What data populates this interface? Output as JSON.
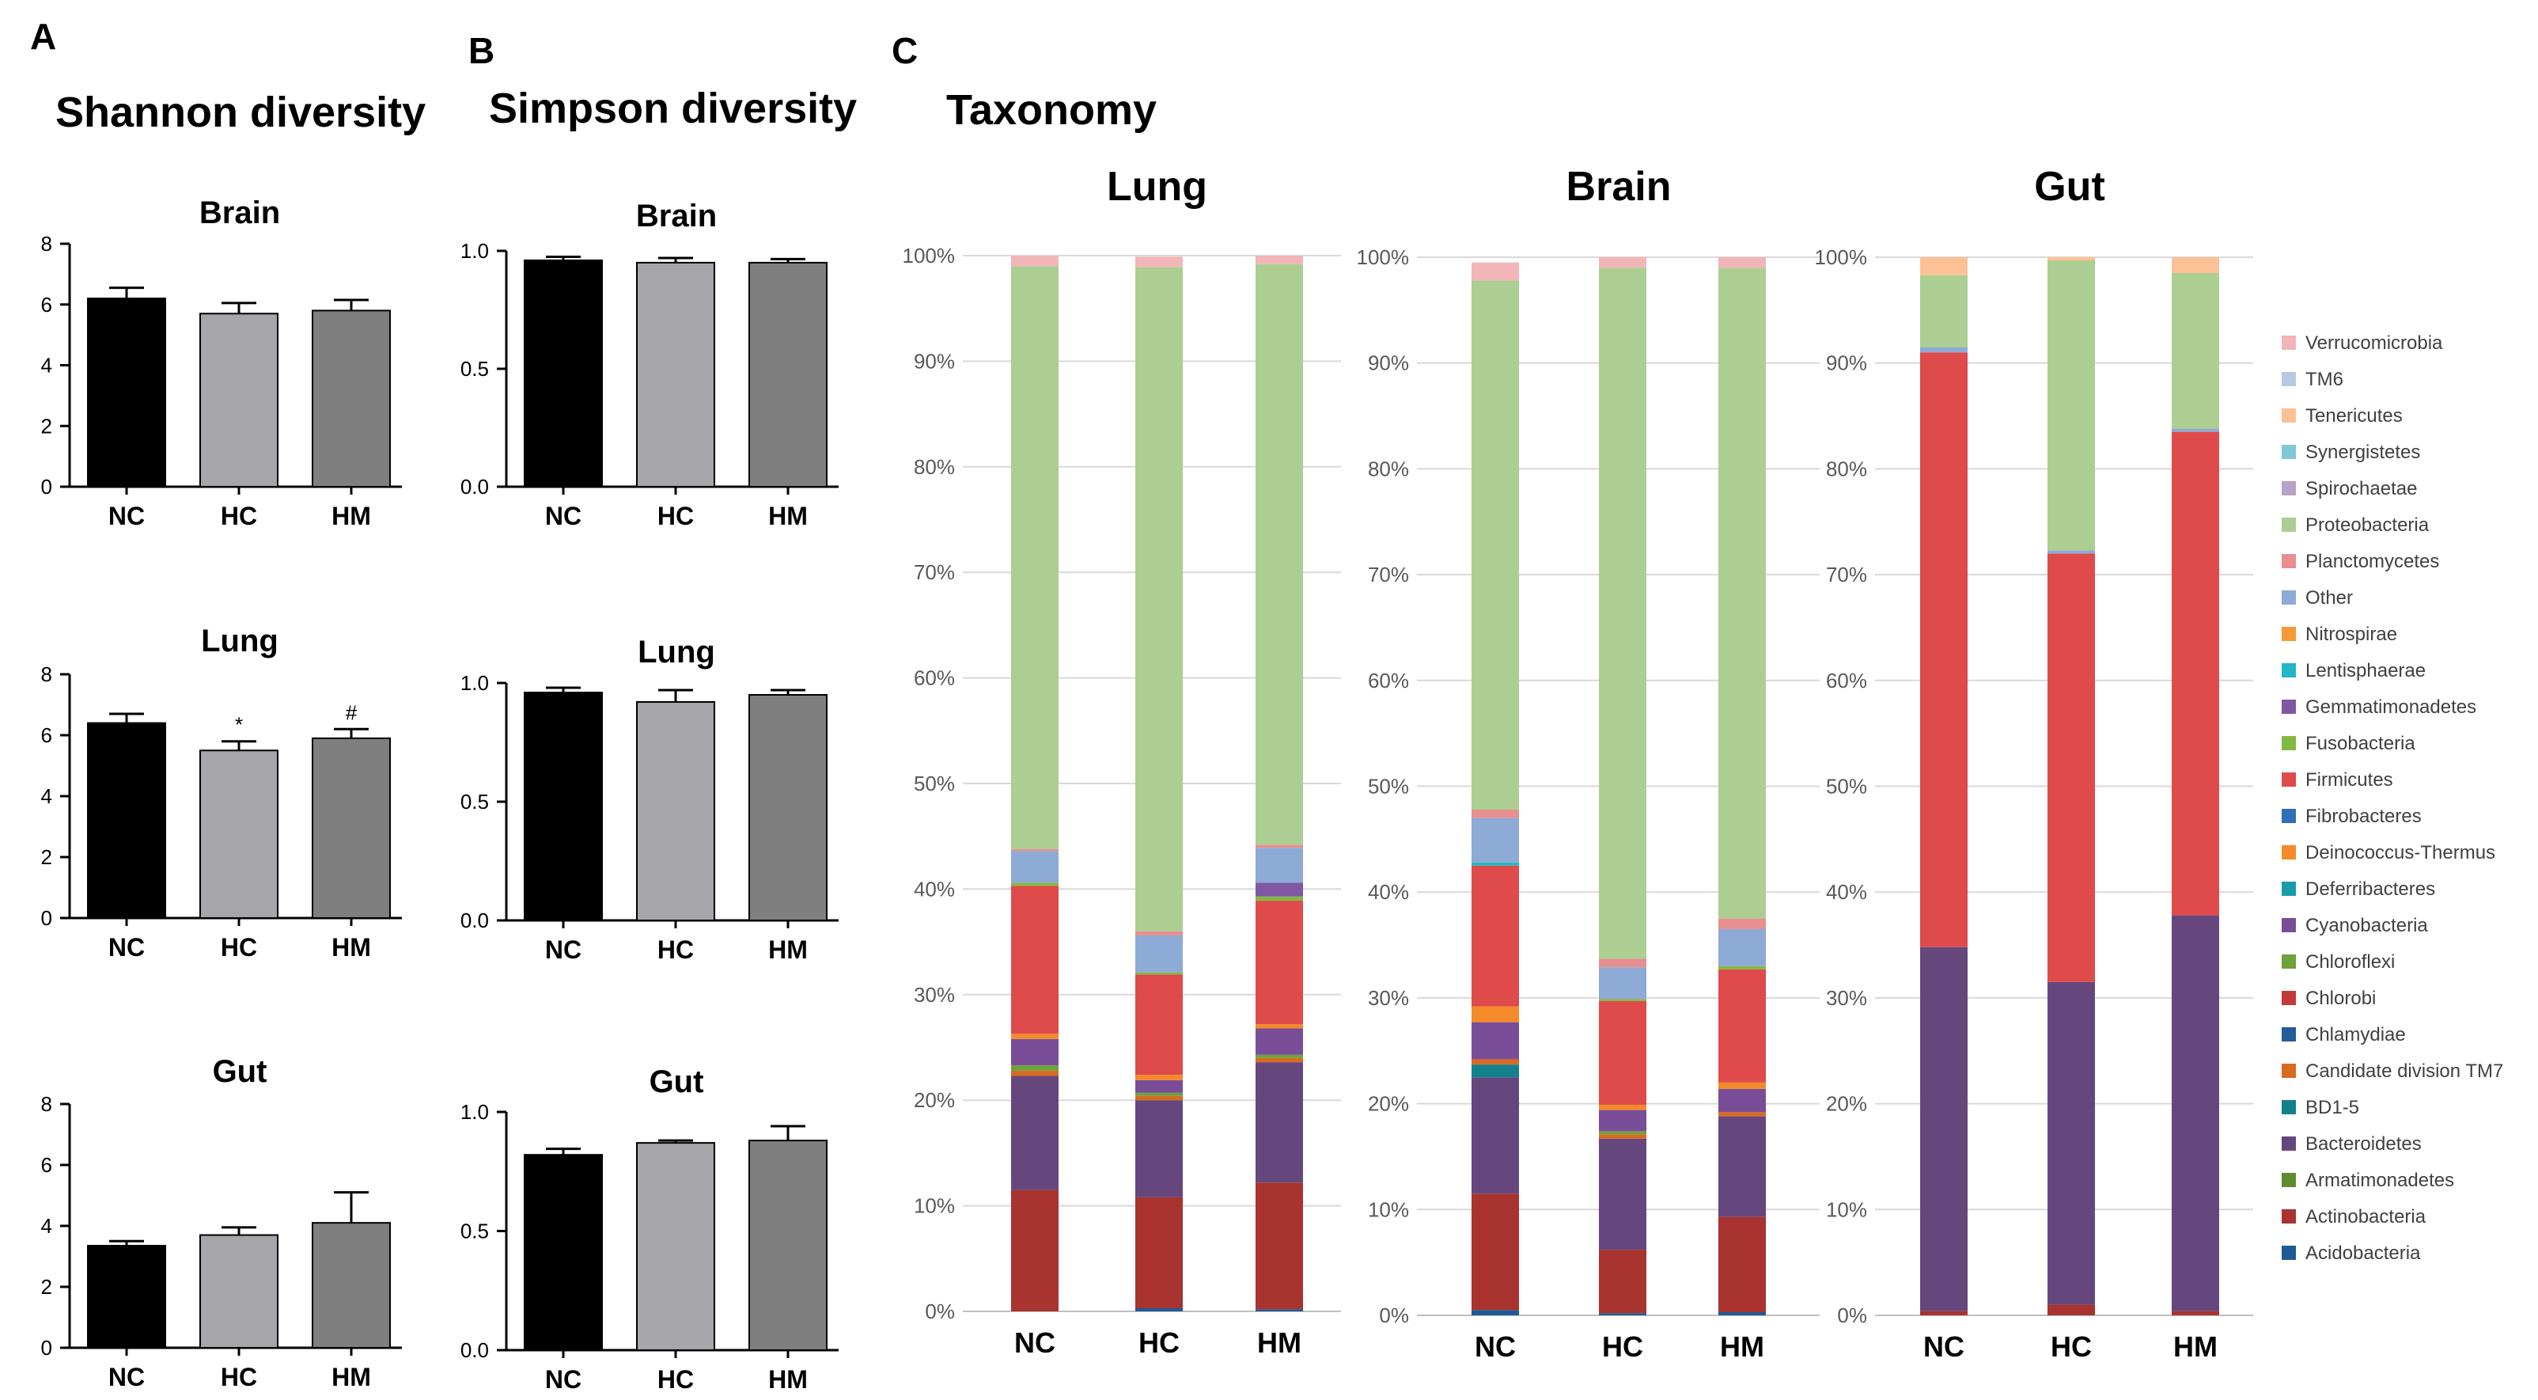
{
  "panels": {
    "a": {
      "letter": "A",
      "title": "Shannon diversity"
    },
    "b": {
      "letter": "B",
      "title": "Simpson diversity"
    },
    "c": {
      "letter": "C",
      "title": "Taxonomy"
    }
  },
  "colors": {
    "NC": "#000000",
    "HC": "#a5a5aa",
    "HM": "#7f7f7f"
  },
  "chart_data": [
    {
      "type": "bar",
      "id": "shannon-brain",
      "title": "Brain",
      "categories": [
        "NC",
        "HC",
        "HM"
      ],
      "values": [
        6.2,
        5.7,
        5.8
      ],
      "errors": [
        0.35,
        0.35,
        0.35
      ],
      "annotations": [
        "",
        "",
        ""
      ],
      "ylim": [
        0,
        8
      ],
      "yticks": [
        "0",
        "2",
        "4",
        "6",
        "8"
      ]
    },
    {
      "type": "bar",
      "id": "shannon-lung",
      "title": "Lung",
      "categories": [
        "NC",
        "HC",
        "HM"
      ],
      "values": [
        6.4,
        5.5,
        5.9
      ],
      "errors": [
        0.3,
        0.3,
        0.3
      ],
      "annotations": [
        "",
        "*",
        "#"
      ],
      "ylim": [
        0,
        8
      ],
      "yticks": [
        "0",
        "2",
        "4",
        "6",
        "8"
      ]
    },
    {
      "type": "bar",
      "id": "shannon-gut",
      "title": "Gut",
      "categories": [
        "NC",
        "HC",
        "HM"
      ],
      "values": [
        3.35,
        3.7,
        4.1
      ],
      "errors": [
        0.15,
        0.25,
        1.0
      ],
      "annotations": [
        "",
        "",
        ""
      ],
      "ylim": [
        0,
        8
      ],
      "yticks": [
        "0",
        "2",
        "4",
        "6",
        "8"
      ]
    },
    {
      "type": "bar",
      "id": "simpson-brain",
      "title": "Brain",
      "categories": [
        "NC",
        "HC",
        "HM"
      ],
      "values": [
        0.96,
        0.95,
        0.95
      ],
      "errors": [
        0.015,
        0.02,
        0.015
      ],
      "annotations": [
        "",
        "",
        ""
      ],
      "ylim": [
        0,
        1
      ],
      "yticks": [
        "0.0",
        "0.5",
        "1.0"
      ]
    },
    {
      "type": "bar",
      "id": "simpson-lung",
      "title": "Lung",
      "categories": [
        "NC",
        "HC",
        "HM"
      ],
      "values": [
        0.96,
        0.92,
        0.95
      ],
      "errors": [
        0.02,
        0.05,
        0.02
      ],
      "annotations": [
        "",
        "",
        ""
      ],
      "ylim": [
        0,
        1
      ],
      "yticks": [
        "0.0",
        "0.5",
        "1.0"
      ]
    },
    {
      "type": "bar",
      "id": "simpson-gut",
      "title": "Gut",
      "categories": [
        "NC",
        "HC",
        "HM"
      ],
      "values": [
        0.82,
        0.87,
        0.88
      ],
      "errors": [
        0.025,
        0.01,
        0.06
      ],
      "annotations": [
        "",
        "",
        ""
      ],
      "ylim": [
        0,
        1
      ],
      "yticks": [
        "0.0",
        "0.5",
        "1.0"
      ]
    },
    {
      "type": "bar",
      "stacked": true,
      "id": "tax-lung",
      "title": "Lung",
      "categories": [
        "NC",
        "HC",
        "HM"
      ],
      "yticks": [
        "0%",
        "10%",
        "20%",
        "30%",
        "40%",
        "50%",
        "60%",
        "70%",
        "80%",
        "90%",
        "100%"
      ],
      "series": [
        {
          "name": "Acidobacteria",
          "values": [
            0,
            0.3,
            0.2
          ]
        },
        {
          "name": "Actinobacteria",
          "values": [
            11.5,
            10.5,
            12
          ]
        },
        {
          "name": "Bacteroidetes",
          "values": [
            10.8,
            9.2,
            11.4
          ]
        },
        {
          "name": "Candidate division TM7",
          "values": [
            0.5,
            0.4,
            0.4
          ]
        },
        {
          "name": "Chloroflexi",
          "values": [
            0.5,
            0.3,
            0.3
          ]
        },
        {
          "name": "Cyanobacteria",
          "values": [
            2.5,
            1.2,
            2.5
          ]
        },
        {
          "name": "Deinococcus-Thermus",
          "values": [
            0.5,
            0.5,
            0.4
          ]
        },
        {
          "name": "Firmicutes",
          "values": [
            14,
            9.5,
            11.7
          ]
        },
        {
          "name": "Fusobacteria",
          "values": [
            0.3,
            0.2,
            0.4
          ]
        },
        {
          "name": "Gemmatimonadetes",
          "values": [
            0,
            0,
            1.3
          ]
        },
        {
          "name": "Other",
          "values": [
            3,
            3.5,
            3.3
          ]
        },
        {
          "name": "Planctomycetes",
          "values": [
            0.2,
            0.4,
            0.3
          ]
        },
        {
          "name": "Proteobacteria",
          "values": [
            55.2,
            62.9,
            55
          ]
        },
        {
          "name": "Verrucomicrobia",
          "values": [
            1,
            1,
            0.8
          ]
        }
      ]
    },
    {
      "type": "bar",
      "stacked": true,
      "id": "tax-brain",
      "title": "Brain",
      "categories": [
        "NC",
        "HC",
        "HM"
      ],
      "yticks": [
        "0%",
        "10%",
        "20%",
        "30%",
        "40%",
        "50%",
        "60%",
        "70%",
        "80%",
        "90%",
        "100%"
      ],
      "series": [
        {
          "name": "Acidobacteria",
          "values": [
            0.5,
            0.2,
            0.3
          ]
        },
        {
          "name": "Actinobacteria",
          "values": [
            11,
            6,
            9
          ]
        },
        {
          "name": "Bacteroidetes",
          "values": [
            11,
            10.5,
            9.5
          ]
        },
        {
          "name": "BD1-5",
          "values": [
            1.2,
            0,
            0
          ]
        },
        {
          "name": "Candidate division TM7",
          "values": [
            0.5,
            0.4,
            0.4
          ]
        },
        {
          "name": "Chloroflexi",
          "values": [
            0,
            0.3,
            0
          ]
        },
        {
          "name": "Cyanobacteria",
          "values": [
            3.5,
            2,
            2.2
          ]
        },
        {
          "name": "Deinococcus-Thermus",
          "values": [
            1.5,
            0.5,
            0.6
          ]
        },
        {
          "name": "Firmicutes",
          "values": [
            13.3,
            9.8,
            10.7
          ]
        },
        {
          "name": "Fusobacteria",
          "values": [
            0,
            0.2,
            0.3
          ]
        },
        {
          "name": "Lentisphaerae",
          "values": [
            0.3,
            0,
            0
          ]
        },
        {
          "name": "Other",
          "values": [
            4.2,
            3,
            3.5
          ]
        },
        {
          "name": "Planctomycetes",
          "values": [
            0.8,
            0.8,
            1
          ]
        },
        {
          "name": "Proteobacteria",
          "values": [
            50,
            65.3,
            61.5
          ]
        },
        {
          "name": "Verrucomicrobia",
          "values": [
            1.7,
            1,
            1
          ]
        }
      ]
    },
    {
      "type": "bar",
      "stacked": true,
      "id": "tax-gut",
      "title": "Gut",
      "categories": [
        "NC",
        "HC",
        "HM"
      ],
      "yticks": [
        "0%",
        "10%",
        "20%",
        "30%",
        "40%",
        "50%",
        "60%",
        "70%",
        "80%",
        "90%",
        "100%"
      ],
      "series": [
        {
          "name": "Actinobacteria",
          "values": [
            0.4,
            1,
            0.4
          ]
        },
        {
          "name": "Bacteroidetes",
          "values": [
            34.4,
            30.5,
            37.4
          ]
        },
        {
          "name": "Firmicutes",
          "values": [
            56.2,
            40.5,
            45.7
          ]
        },
        {
          "name": "Other",
          "values": [
            0.5,
            0.3,
            0.3
          ]
        },
        {
          "name": "Proteobacteria",
          "values": [
            6.8,
            27.4,
            14.7
          ]
        },
        {
          "name": "Tenericutes",
          "values": [
            1.7,
            0.3,
            1.5
          ]
        }
      ]
    }
  ],
  "legend": [
    {
      "name": "Verrucomicrobia",
      "color": "#f2b5b8"
    },
    {
      "name": "TM6",
      "color": "#b7c9e2"
    },
    {
      "name": "Tenericutes",
      "color": "#fcc194"
    },
    {
      "name": "Synergistetes",
      "color": "#7fc7d9"
    },
    {
      "name": "Spirochaetae",
      "color": "#b7a2c8"
    },
    {
      "name": "Proteobacteria",
      "color": "#acce92"
    },
    {
      "name": "Planctomycetes",
      "color": "#e78f91"
    },
    {
      "name": "Other",
      "color": "#8eaad6"
    },
    {
      "name": "Nitrospirae",
      "color": "#f79a36"
    },
    {
      "name": "Lentisphaerae",
      "color": "#22b7c6"
    },
    {
      "name": "Gemmatimonadetes",
      "color": "#7f57a3"
    },
    {
      "name": "Fusobacteria",
      "color": "#82b943"
    },
    {
      "name": "Firmicutes",
      "color": "#df4a4a"
    },
    {
      "name": "Fibrobacteres",
      "color": "#2f6fb5"
    },
    {
      "name": "Deinococcus-Thermus",
      "color": "#f58a2b"
    },
    {
      "name": "Deferribacteres",
      "color": "#1a9bab"
    },
    {
      "name": "Cyanobacteria",
      "color": "#7a4d98"
    },
    {
      "name": "Chloroflexi",
      "color": "#6ea23a"
    },
    {
      "name": "Chlorobi",
      "color": "#c43a3a"
    },
    {
      "name": "Chlamydiae",
      "color": "#235c9a"
    },
    {
      "name": "Candidate division TM7",
      "color": "#d86b22"
    },
    {
      "name": "BD1-5",
      "color": "#13808e"
    },
    {
      "name": "Bacteroidetes",
      "color": "#66477d"
    },
    {
      "name": "Armatimonadetes",
      "color": "#5f8b30"
    },
    {
      "name": "Actinobacteria",
      "color": "#a8332f"
    },
    {
      "name": "Acidobacteria",
      "color": "#1f5a94"
    }
  ]
}
